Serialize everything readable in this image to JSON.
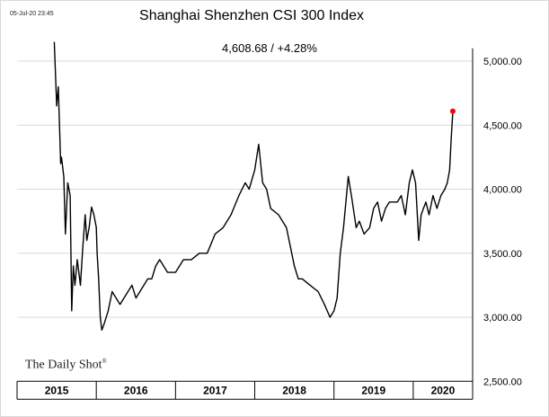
{
  "timestamp": "05-Jul-20 23:45",
  "watermark": "The Daily Shot",
  "watermark_mark": "®",
  "colors": {
    "line": "#000000",
    "grid": "#d9d9d9",
    "last_point": "#ff0000"
  },
  "chart_data": {
    "type": "line",
    "title": "Shanghai Shenzhen CSI 300 Index",
    "subtitle": "4,608.68  /  +4.28%",
    "xlabel": "",
    "ylabel": "",
    "x_categories": [
      "2015",
      "2016",
      "2017",
      "2018",
      "2019",
      "2020"
    ],
    "ylim": [
      2500,
      5100
    ],
    "yticks": [
      2500,
      3000,
      3500,
      4000,
      4500,
      5000
    ],
    "ytick_labels": [
      "2,500.00",
      "3,000.00",
      "3,500.00",
      "4,000.00",
      "4,500.00",
      "5,000.00"
    ],
    "y_axis_position": "right",
    "grid": "horizontal",
    "last_point_marker": true,
    "series": [
      {
        "x": [
          2015.47,
          2015.5,
          2015.52,
          2015.55,
          2015.56,
          2015.59,
          2015.61,
          2015.64,
          2015.67,
          2015.69,
          2015.71,
          2015.73,
          2015.76,
          2015.8,
          2015.83,
          2015.86,
          2015.88,
          2015.91,
          2015.94,
          2015.97,
          2016.0,
          2016.01,
          2016.03,
          2016.05,
          2016.07,
          2016.1,
          2016.15,
          2016.2,
          2016.25,
          2016.3,
          2016.35,
          2016.4,
          2016.45,
          2016.5,
          2016.55,
          2016.6,
          2016.65,
          2016.7,
          2016.75,
          2016.8,
          2016.9,
          2017.0,
          2017.1,
          2017.2,
          2017.3,
          2017.4,
          2017.5,
          2017.6,
          2017.7,
          2017.8,
          2017.88,
          2017.93,
          2018.0,
          2018.05,
          2018.1,
          2018.15,
          2018.2,
          2018.3,
          2018.4,
          2018.5,
          2018.55,
          2018.6,
          2018.7,
          2018.8,
          2018.88,
          2018.95,
          2019.0,
          2019.04,
          2019.08,
          2019.12,
          2019.18,
          2019.22,
          2019.28,
          2019.32,
          2019.38,
          2019.45,
          2019.5,
          2019.55,
          2019.6,
          2019.65,
          2019.7,
          2019.75,
          2019.8,
          2019.85,
          2019.9,
          2019.95,
          2019.99,
          2020.03,
          2020.07,
          2020.1,
          2020.13,
          2020.16,
          2020.2,
          2020.25,
          2020.3,
          2020.35,
          2020.4,
          2020.43,
          2020.46,
          2020.48,
          2020.5
        ],
        "values": [
          5150,
          4650,
          4800,
          4200,
          4250,
          4100,
          3650,
          4050,
          3950,
          3050,
          3400,
          3250,
          3450,
          3250,
          3550,
          3800,
          3600,
          3700,
          3860,
          3800,
          3700,
          3500,
          3300,
          3000,
          2900,
          2950,
          3050,
          3200,
          3150,
          3100,
          3150,
          3200,
          3250,
          3150,
          3200,
          3250,
          3300,
          3300,
          3400,
          3450,
          3350,
          3350,
          3450,
          3450,
          3500,
          3500,
          3650,
          3700,
          3800,
          3950,
          4050,
          4000,
          4150,
          4350,
          4050,
          4000,
          3850,
          3800,
          3700,
          3400,
          3300,
          3300,
          3250,
          3200,
          3100,
          3000,
          3050,
          3150,
          3500,
          3700,
          4100,
          3950,
          3700,
          3750,
          3650,
          3700,
          3850,
          3900,
          3750,
          3850,
          3900,
          3900,
          3900,
          3950,
          3800,
          4050,
          4150,
          4050,
          3600,
          3800,
          3850,
          3900,
          3800,
          3950,
          3850,
          3950,
          4000,
          4050,
          4150,
          4400,
          4608.68
        ]
      }
    ]
  }
}
